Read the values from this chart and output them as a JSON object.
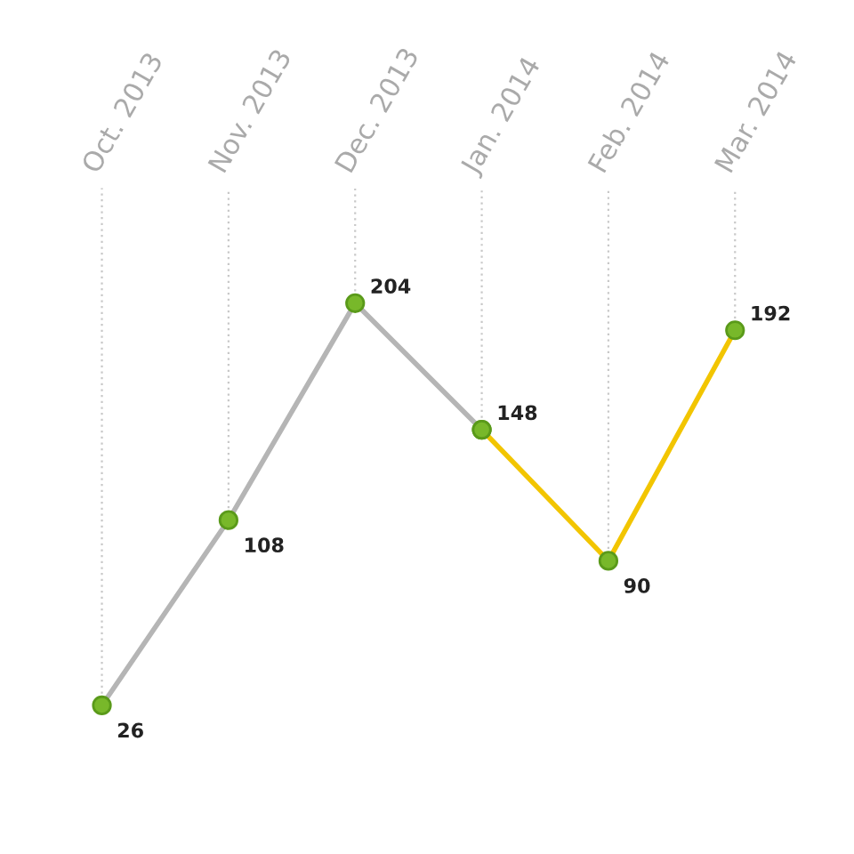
{
  "chart_data": {
    "type": "line",
    "categories": [
      "Oct. 2013",
      "Nov. 2013",
      "Dec. 2013",
      "Jan. 2014",
      "Feb. 2014",
      "Mar. 2014"
    ],
    "series": [
      {
        "color": "#b5b5b5",
        "values": [
          26,
          108,
          204,
          148,
          null,
          null
        ],
        "value_labels": [
          "26",
          "108",
          "204",
          "148",
          null,
          null
        ]
      },
      {
        "color": "#f2c500",
        "values": [
          null,
          null,
          null,
          148,
          90,
          192
        ],
        "value_labels": [
          null,
          null,
          null,
          null,
          "90",
          "192"
        ]
      }
    ],
    "marker": "circle",
    "grid": "x",
    "legend": false,
    "tick_labels": "x"
  }
}
